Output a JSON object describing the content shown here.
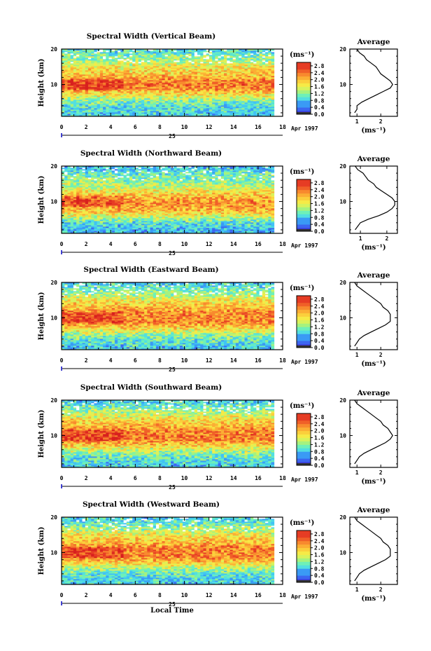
{
  "chart_data": [
    {
      "type": "heatmap",
      "title": "Spectral Width (Vertical Beam)",
      "ylabel": "Height (km)",
      "date_label": "Apr 1997",
      "day_label": "25",
      "colorbar_unit": "(ms⁻¹)",
      "colorbar_ticks": [
        "2.8",
        "2.4",
        "2.0",
        "1.6",
        "1.2",
        "0.8",
        "0.4",
        "0.0"
      ],
      "colorbar_range": [
        0,
        3.0
      ],
      "xlim": [
        0,
        18
      ],
      "ylim": [
        1,
        20
      ],
      "xticks": [
        "0",
        "2",
        "4",
        "6",
        "8",
        "10",
        "12",
        "14",
        "16",
        "18"
      ],
      "yticks": [
        "10",
        "20"
      ],
      "time_end": 17.3,
      "profile": {
        "title": "Average",
        "xlabel": "(ms⁻¹)",
        "xticks": [
          "1",
          "2"
        ],
        "xlim": [
          0.7,
          2.7
        ],
        "yticks": [
          "10",
          "20"
        ],
        "height": [
          2,
          3,
          4,
          5,
          6,
          7,
          8,
          9,
          10,
          11,
          12,
          13,
          14,
          15,
          16,
          17,
          18,
          19,
          20
        ],
        "width": [
          0.9,
          1.0,
          1.0,
          1.2,
          1.5,
          1.8,
          2.1,
          2.4,
          2.5,
          2.4,
          2.2,
          2.0,
          1.9,
          1.8,
          1.6,
          1.4,
          1.3,
          1.1,
          1.0
        ]
      }
    },
    {
      "type": "heatmap",
      "title": "Spectral Width (Northward Beam)",
      "ylabel": "Height (km)",
      "date_label": "Apr 1997",
      "day_label": "25",
      "colorbar_unit": "(ms⁻¹)",
      "colorbar_ticks": [
        "2.8",
        "2.4",
        "2.0",
        "1.6",
        "1.2",
        "0.8",
        "0.4",
        "0.0"
      ],
      "colorbar_range": [
        0,
        3.0
      ],
      "xlim": [
        0,
        18
      ],
      "ylim": [
        1,
        20
      ],
      "xticks": [
        "0",
        "2",
        "4",
        "6",
        "8",
        "10",
        "12",
        "14",
        "16",
        "18"
      ],
      "yticks": [
        "10",
        "20"
      ],
      "time_end": 17.3,
      "profile": {
        "title": "Average",
        "xlabel": "(ms⁻¹)",
        "xticks": [
          "1",
          "2"
        ],
        "xlim": [
          0.6,
          2.4
        ],
        "yticks": [
          "10",
          "20"
        ],
        "height": [
          2,
          3,
          4,
          5,
          6,
          7,
          8,
          9,
          10,
          11,
          12,
          13,
          14,
          15,
          16,
          17,
          18,
          19,
          20
        ],
        "width": [
          0.8,
          0.9,
          1.0,
          1.3,
          1.7,
          2.0,
          2.2,
          2.3,
          2.3,
          2.2,
          2.0,
          1.8,
          1.6,
          1.5,
          1.3,
          1.2,
          1.1,
          0.9,
          0.8
        ]
      }
    },
    {
      "type": "heatmap",
      "title": "Spectral Width (Eastward Beam)",
      "ylabel": "Height (km)",
      "date_label": "Apr 1997",
      "day_label": "25",
      "colorbar_unit": "(ms⁻¹)",
      "colorbar_ticks": [
        "2.8",
        "2.4",
        "2.0",
        "1.6",
        "1.2",
        "0.8",
        "0.4",
        "0.0"
      ],
      "colorbar_range": [
        0,
        3.0
      ],
      "xlim": [
        0,
        18
      ],
      "ylim": [
        1,
        20
      ],
      "xticks": [
        "0",
        "2",
        "4",
        "6",
        "8",
        "10",
        "12",
        "14",
        "16",
        "18"
      ],
      "yticks": [
        "10",
        "20"
      ],
      "time_end": 17.3,
      "profile": {
        "title": "Average",
        "xlabel": "(ms⁻¹)",
        "xticks": [
          "1",
          "2"
        ],
        "xlim": [
          0.7,
          2.7
        ],
        "yticks": [
          "10",
          "20"
        ],
        "height": [
          2,
          3,
          4,
          5,
          6,
          7,
          8,
          9,
          10,
          11,
          12,
          13,
          14,
          15,
          16,
          17,
          18,
          19,
          20
        ],
        "width": [
          0.9,
          1.0,
          1.1,
          1.3,
          1.6,
          1.9,
          2.2,
          2.4,
          2.4,
          2.4,
          2.3,
          2.1,
          2.0,
          1.8,
          1.6,
          1.4,
          1.2,
          1.0,
          0.9
        ]
      }
    },
    {
      "type": "heatmap",
      "title": "Spectral Width (Southward Beam)",
      "ylabel": "Height (km)",
      "date_label": "Apr 1997",
      "day_label": "25",
      "colorbar_unit": "(ms⁻¹)",
      "colorbar_ticks": [
        "2.8",
        "2.4",
        "2.0",
        "1.6",
        "1.2",
        "0.8",
        "0.4",
        "0.0"
      ],
      "colorbar_range": [
        0,
        3.0
      ],
      "xlim": [
        0,
        18
      ],
      "ylim": [
        1,
        20
      ],
      "xticks": [
        "0",
        "2",
        "4",
        "6",
        "8",
        "10",
        "12",
        "14",
        "16",
        "18"
      ],
      "yticks": [
        "10",
        "20"
      ],
      "time_end": 17.3,
      "profile": {
        "title": "Average",
        "xlabel": "(ms⁻¹)",
        "xticks": [
          "1",
          "2"
        ],
        "xlim": [
          0.7,
          2.7
        ],
        "yticks": [
          "10",
          "20"
        ],
        "height": [
          2,
          3,
          4,
          5,
          6,
          7,
          8,
          9,
          10,
          11,
          12,
          13,
          14,
          15,
          16,
          17,
          18,
          19,
          20
        ],
        "width": [
          0.9,
          1.0,
          1.1,
          1.3,
          1.6,
          1.9,
          2.2,
          2.4,
          2.5,
          2.4,
          2.3,
          2.1,
          2.0,
          1.8,
          1.6,
          1.4,
          1.2,
          1.0,
          0.9
        ]
      }
    },
    {
      "type": "heatmap",
      "title": "Spectral Width (Westward Beam)",
      "ylabel": "Height (km)",
      "date_label": "Apr 1997",
      "day_label": "25",
      "xlabel": "Local Time",
      "colorbar_unit": "(ms⁻¹)",
      "colorbar_ticks": [
        "2.8",
        "2.4",
        "2.0",
        "1.6",
        "1.2",
        "0.8",
        "0.4",
        "0.0"
      ],
      "colorbar_range": [
        0,
        3.0
      ],
      "xlim": [
        0,
        18
      ],
      "ylim": [
        1,
        20
      ],
      "xticks": [
        "0",
        "2",
        "4",
        "6",
        "8",
        "10",
        "12",
        "14",
        "16",
        "18"
      ],
      "yticks": [
        "10",
        "20"
      ],
      "time_end": 17.3,
      "profile": {
        "title": "Average",
        "xlabel": "(ms⁻¹)",
        "xticks": [
          "1",
          "2"
        ],
        "xlim": [
          0.7,
          2.7
        ],
        "yticks": [
          "10",
          "20"
        ],
        "height": [
          2,
          3,
          4,
          5,
          6,
          7,
          8,
          9,
          10,
          11,
          12,
          13,
          14,
          15,
          16,
          17,
          18,
          19,
          20
        ],
        "width": [
          0.9,
          1.0,
          1.1,
          1.3,
          1.6,
          1.9,
          2.2,
          2.4,
          2.4,
          2.4,
          2.3,
          2.1,
          2.0,
          1.8,
          1.6,
          1.4,
          1.2,
          1.0,
          0.9
        ]
      }
    }
  ]
}
